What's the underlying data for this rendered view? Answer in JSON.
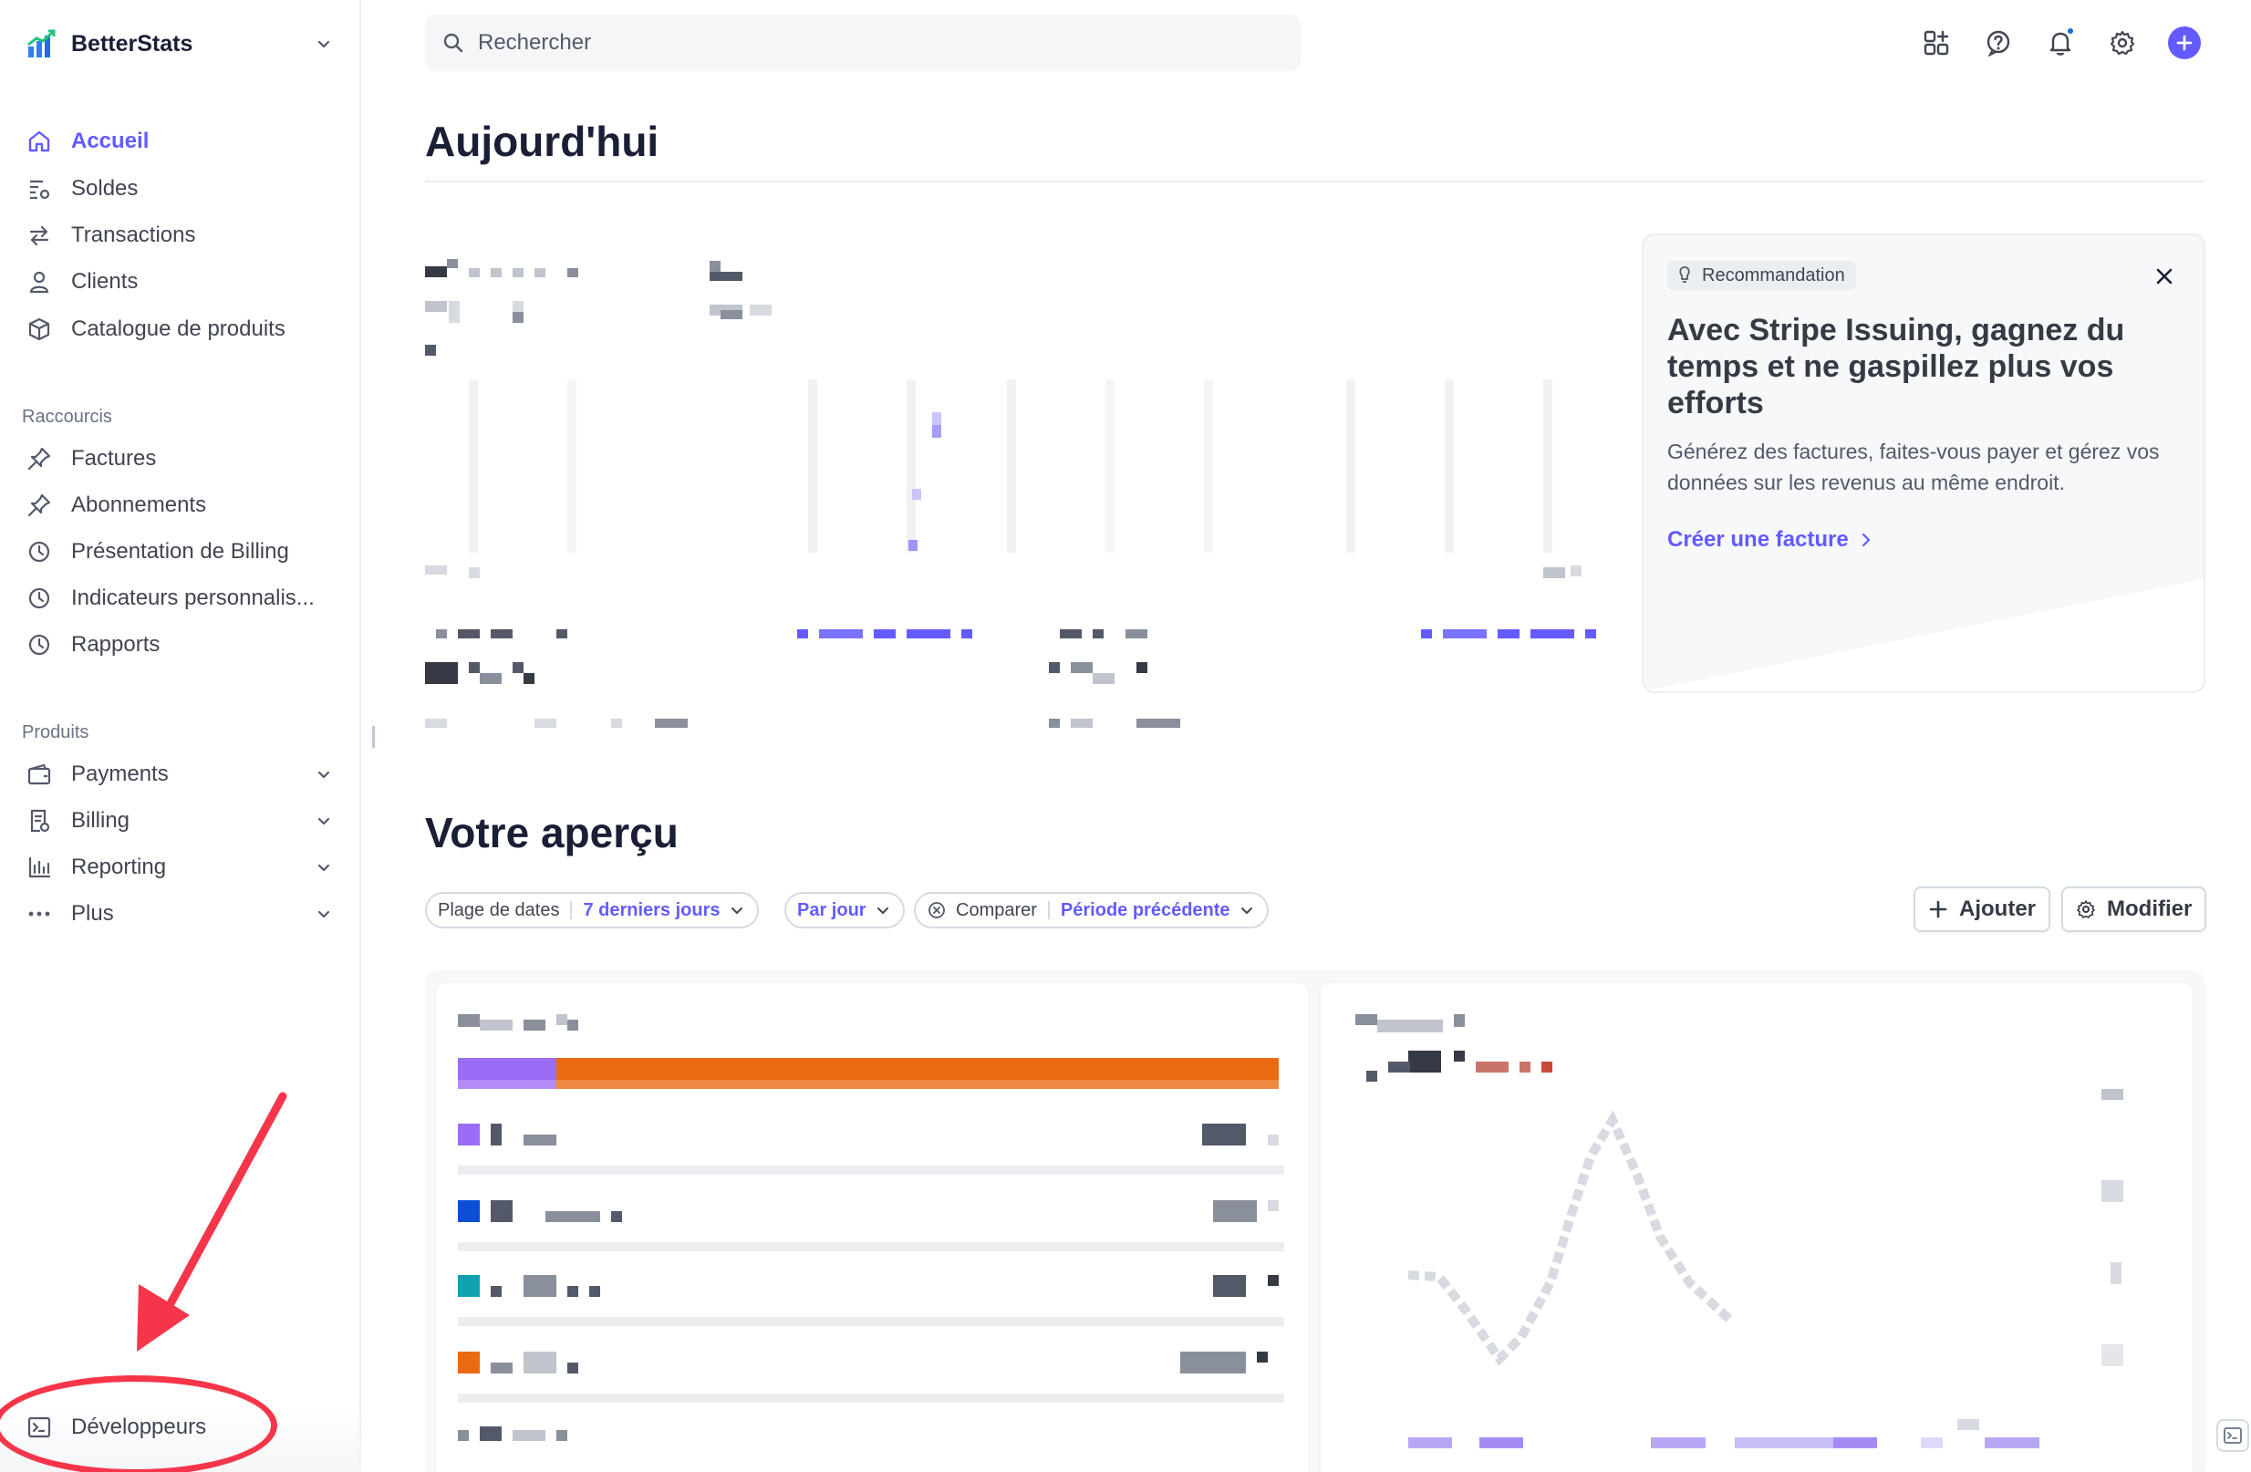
{
  "app": {
    "name": "BetterStats"
  },
  "sidebar": {
    "main_items": [
      {
        "label": "Accueil",
        "icon": "home-icon",
        "active": true
      },
      {
        "label": "Soldes",
        "icon": "balances-icon"
      },
      {
        "label": "Transactions",
        "icon": "transfer-arrows-icon"
      },
      {
        "label": "Clients",
        "icon": "person-icon"
      },
      {
        "label": "Catalogue de produits",
        "icon": "box-icon"
      }
    ],
    "shortcuts_label": "Raccourcis",
    "shortcuts": [
      {
        "label": "Factures",
        "icon": "pin-icon"
      },
      {
        "label": "Abonnements",
        "icon": "pin-icon"
      },
      {
        "label": "Présentation de Billing",
        "icon": "clock-icon"
      },
      {
        "label": "Indicateurs personnalis...",
        "icon": "clock-icon"
      },
      {
        "label": "Rapports",
        "icon": "clock-icon"
      }
    ],
    "products_label": "Produits",
    "products": [
      {
        "label": "Payments",
        "icon": "wallet-icon"
      },
      {
        "label": "Billing",
        "icon": "invoice-icon"
      },
      {
        "label": "Reporting",
        "icon": "bar-chart-icon"
      },
      {
        "label": "Plus",
        "icon": "more-dots-icon"
      }
    ],
    "developers": {
      "label": "Développeurs",
      "icon": "terminal-icon"
    }
  },
  "topbar": {
    "search_placeholder": "Rechercher",
    "icons": [
      "apps-plus-icon",
      "help-icon",
      "bell-icon",
      "gear-icon",
      "plus-icon"
    ]
  },
  "main": {
    "title": "Aujourd'hui",
    "recommendation": {
      "badge": "Recommandation",
      "title": "Avec Stripe Issuing, gagnez du temps et ne gaspillez plus vos efforts",
      "body": "Générez des factures, faites-vous payer et gérez vos données sur les revenus au même endroit.",
      "link": "Créer une facture"
    },
    "overview": {
      "title": "Votre aperçu",
      "filters": {
        "date_range_label": "Plage de dates",
        "date_range_value": "7 derniers jours",
        "interval_value": "Par jour",
        "compare_label": "Comparer",
        "compare_value": "Période précédente"
      },
      "add_button": "Ajouter",
      "edit_button": "Modifier"
    }
  },
  "colors": {
    "accent": "#635bff",
    "annotation_red": "#f5364a",
    "bar_purple": "#9b6cf5",
    "bar_orange": "#ea6a12"
  }
}
